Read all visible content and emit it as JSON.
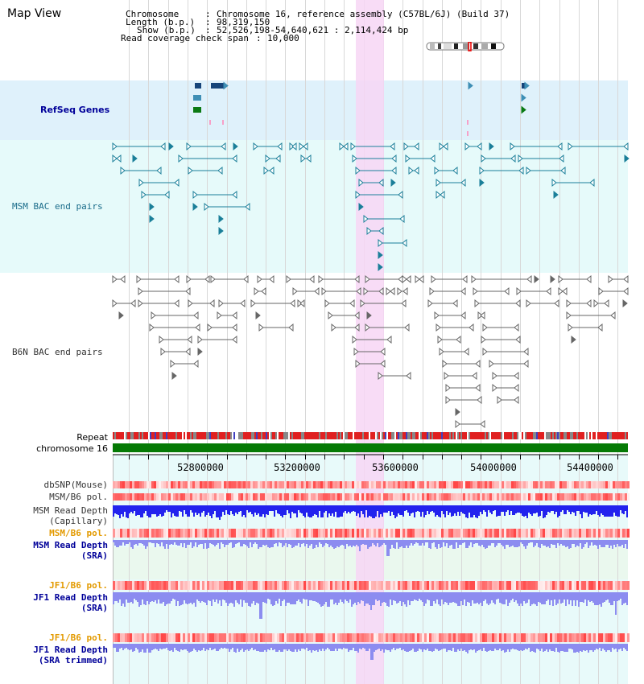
{
  "title": "Map View",
  "info": {
    "chromosome_label": "Chromosome",
    "chromosome_value": "Chromosome 16, reference assembly (C57BL/6J) (Build 37)",
    "length_label": "Length (b.p.)",
    "length_value": "98,319,150",
    "show_label": "Show (b.p.)",
    "show_value": "52,526,198-54,640,621 : 2,114,424 bp",
    "coverage_label": "Read coverage check span",
    "coverage_value": "10,000"
  },
  "track_labels": {
    "refseq": "RefSeq Genes",
    "msm_bac": "MSM BAC end pairs",
    "b6n_bac": "B6N BAC end pairs",
    "repeat": "Repeat",
    "chromosome": "chromosome 16",
    "dbsnp": "dbSNP(Mouse)",
    "msm_b6_pol_1": "MSM/B6 pol.",
    "msm_read_depth_cap_1": "MSM Read Depth",
    "msm_read_depth_cap_2": "(Capillary)",
    "msm_b6_pol_2": "MSM/B6 pol.",
    "msm_read_depth_sra_1": "MSM Read Depth",
    "msm_read_depth_sra_2": "(SRA)",
    "jf1_b6_pol_1": "JF1/B6 pol.",
    "jf1_read_depth_sra_1": "JF1 Read Depth",
    "jf1_read_depth_sra_2": "(SRA)",
    "jf1_b6_pol_2": "JF1/B6 pol.",
    "jf1_read_depth_trim_1": "JF1 Read Depth",
    "jf1_read_depth_trim_2": "(SRA trimmed)"
  },
  "axis_ticks": [
    "52800000",
    "53200000",
    "53600000",
    "54000000",
    "54400000"
  ],
  "colors": {
    "refseq_bg": "#dff1fb",
    "msm_bg": "#e6fafa",
    "b6n_bg": "#ffffff",
    "highlight": "#f7d6f5",
    "msm_feature": "#1a7f99",
    "b6n_feature": "#666666",
    "refseq_dark": "#16457a",
    "refseq_light": "#3f8fb5",
    "refseq_green": "#0b7a14",
    "chromosome_bar": "#057a05",
    "repeat_red": "#e02020",
    "depth_blue": "#2222ee",
    "depth_lavender": "#8c8cf0",
    "label_navy": "#000099",
    "label_orange": "#e39a00",
    "label_gray": "#333333",
    "label_teal": "#1a6c8a"
  }
}
